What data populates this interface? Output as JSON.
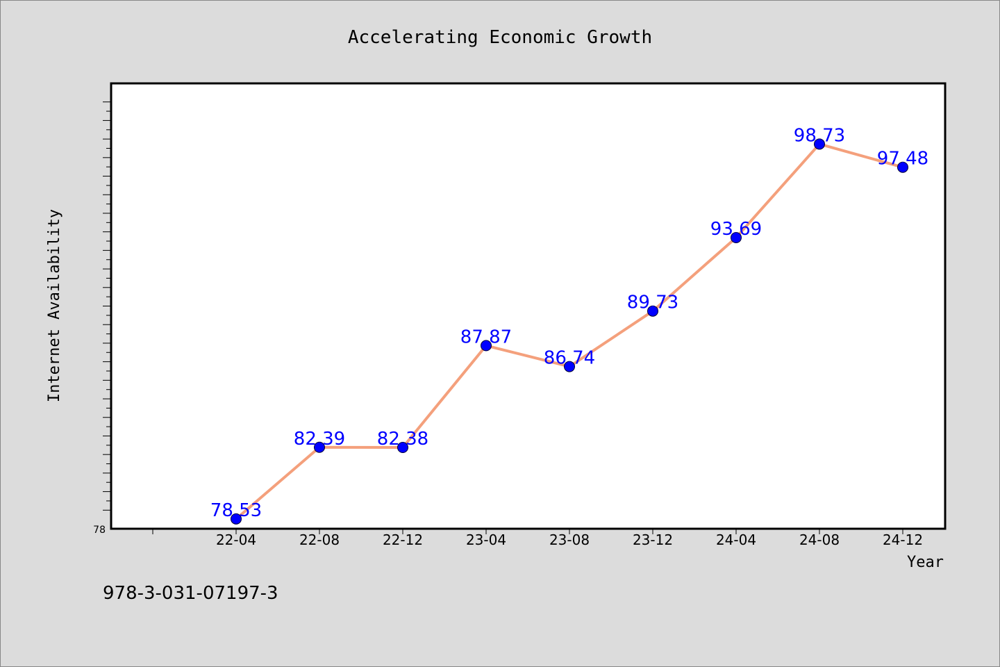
{
  "chart_data": {
    "type": "line",
    "title": "Accelerating Economic Growth",
    "xlabel": "Year",
    "ylabel": "Internet Availability",
    "categories": [
      "22-04",
      "22-08",
      "22-12",
      "23-04",
      "23-08",
      "23-12",
      "24-04",
      "24-08",
      "24-12"
    ],
    "series": [
      {
        "values": [
          78.53,
          82.39,
          82.38,
          87.87,
          86.74,
          89.73,
          93.69,
          98.73,
          97.48
        ],
        "labels": [
          "78.53",
          "82.39",
          "82.38",
          "87.87",
          "86.74",
          "89.73",
          "93.69",
          "98.73",
          "97.48"
        ]
      }
    ],
    "ylim": [
      78,
      102
    ],
    "ytick_labels": [
      "78"
    ],
    "grid": false,
    "colors": {
      "line": "#f4a07c",
      "marker": "#0000ff",
      "data_label": "#0000ff",
      "plot_background": "#ffffff",
      "page_background": "#dcdcdc"
    }
  },
  "footer": {
    "isbn": "978-3-031-07197-3"
  }
}
